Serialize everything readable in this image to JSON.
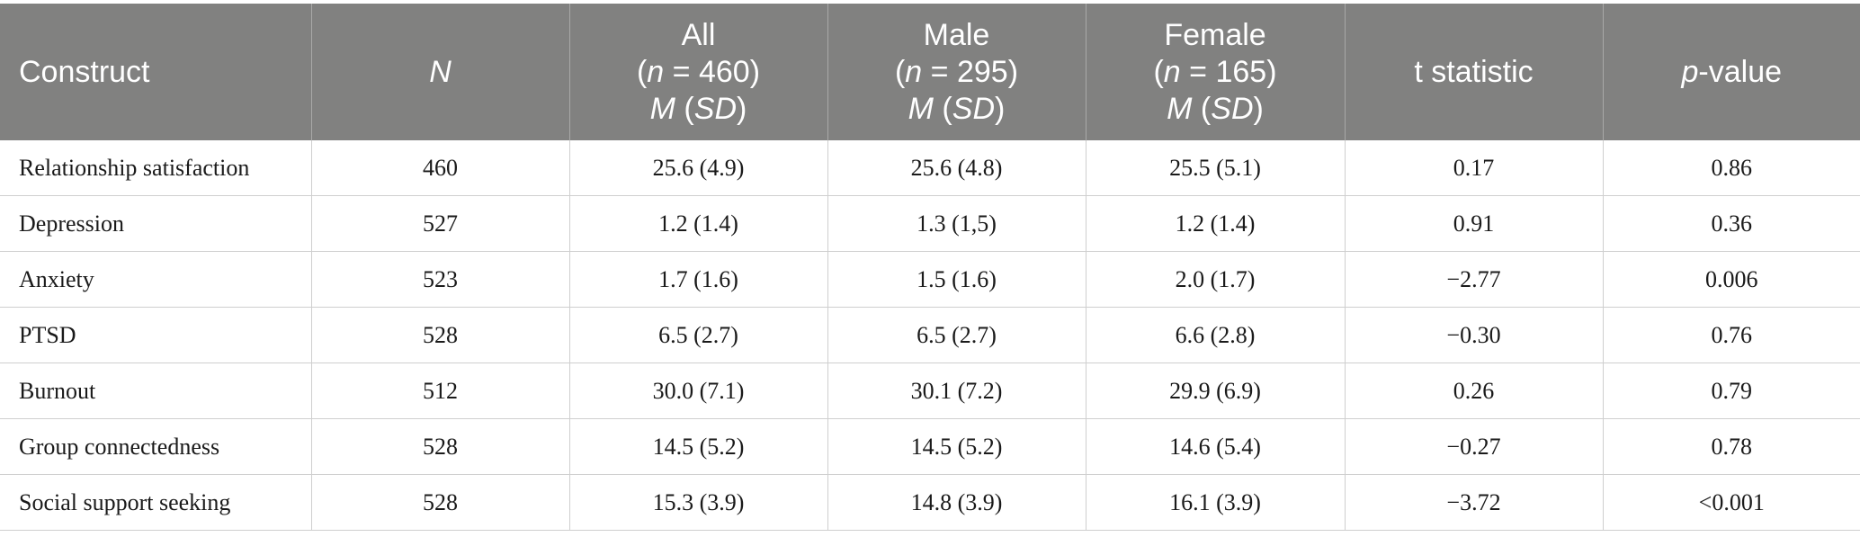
{
  "header": {
    "construct": "Construct",
    "n": "N",
    "all": {
      "line1": "All",
      "n_label": "n",
      "n_value": " = 460",
      "m": "M",
      "sd": "SD"
    },
    "male": {
      "line1": "Male",
      "n_label": "n",
      "n_value": " = 295",
      "m": "M",
      "sd": "SD"
    },
    "female": {
      "line1": "Female",
      "n_label": "n",
      "n_value": " = 165",
      "m": "M",
      "sd": "SD"
    },
    "t": "t statistic",
    "p_italic": "p",
    "p_rest": "-value"
  },
  "rows": [
    {
      "construct": "Relationship satisfaction",
      "n": "460",
      "all": "25.6 (4.9)",
      "male": "25.6 (4.8)",
      "female": "25.5 (5.1)",
      "t": "0.17",
      "p": "0.86"
    },
    {
      "construct": "Depression",
      "n": "527",
      "all": "1.2 (1.4)",
      "male": "1.3 (1,5)",
      "female": "1.2 (1.4)",
      "t": "0.91",
      "p": "0.36"
    },
    {
      "construct": "Anxiety",
      "n": "523",
      "all": "1.7 (1.6)",
      "male": "1.5 (1.6)",
      "female": "2.0 (1.7)",
      "t": "−2.77",
      "p": "0.006"
    },
    {
      "construct": "PTSD",
      "n": "528",
      "all": "6.5 (2.7)",
      "male": "6.5 (2.7)",
      "female": "6.6 (2.8)",
      "t": "−0.30",
      "p": "0.76"
    },
    {
      "construct": "Burnout",
      "n": "512",
      "all": "30.0 (7.1)",
      "male": "30.1 (7.2)",
      "female": "29.9 (6.9)",
      "t": "0.26",
      "p": "0.79"
    },
    {
      "construct": "Group connectedness",
      "n": "528",
      "all": "14.5 (5.2)",
      "male": "14.5 (5.2)",
      "female": "14.6 (5.4)",
      "t": "−0.27",
      "p": "0.78"
    },
    {
      "construct": "Social support seeking",
      "n": "528",
      "all": "15.3 (3.9)",
      "male": "14.8 (3.9)",
      "female": "16.1 (3.9)",
      "t": "−3.72",
      "p": "<0.001"
    }
  ]
}
